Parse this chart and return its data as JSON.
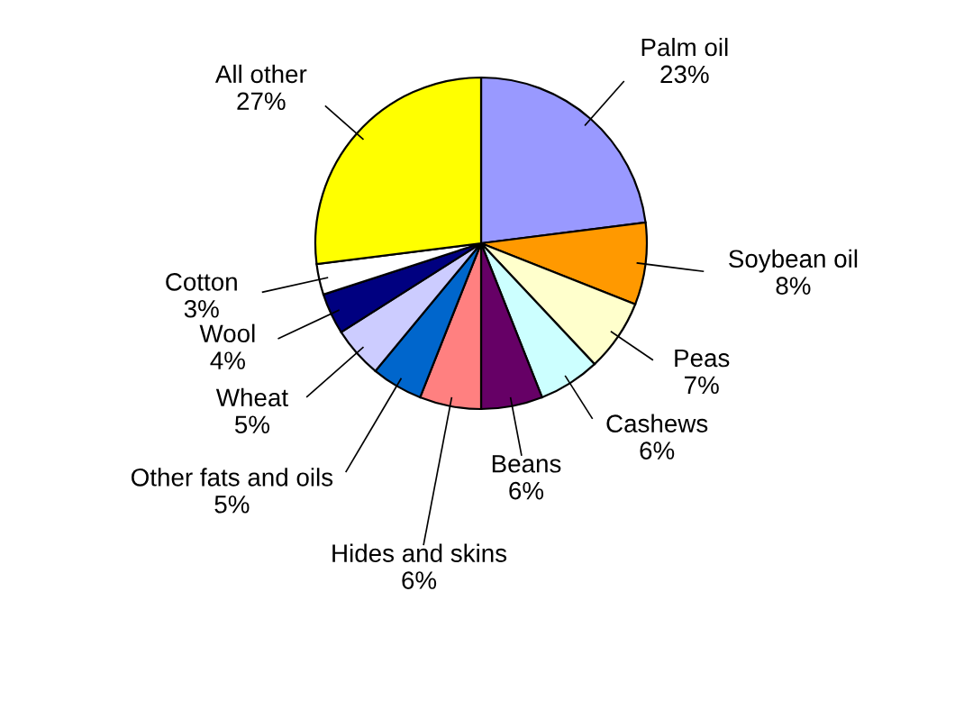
{
  "chart_data": {
    "type": "pie",
    "categories": [
      "Palm oil",
      "Soybean oil",
      "Peas",
      "Cashews",
      "Beans",
      "Hides and skins",
      "Other fats and oils",
      "Wheat",
      "Wool",
      "Cotton",
      "All other"
    ],
    "values": [
      23,
      8,
      7,
      6,
      6,
      6,
      5,
      5,
      4,
      3,
      27
    ],
    "colors": [
      "#9999ff",
      "#ff9900",
      "#ffffcc",
      "#ccffff",
      "#660066",
      "#ff8080",
      "#0066cc",
      "#ccccff",
      "#000080",
      "#ffffff",
      "#ffff00"
    ],
    "value_labels": [
      "23%",
      "8%",
      "7%",
      "6%",
      "6%",
      "6%",
      "5%",
      "5%",
      "4%",
      "3%",
      "27%"
    ],
    "legend": false
  }
}
